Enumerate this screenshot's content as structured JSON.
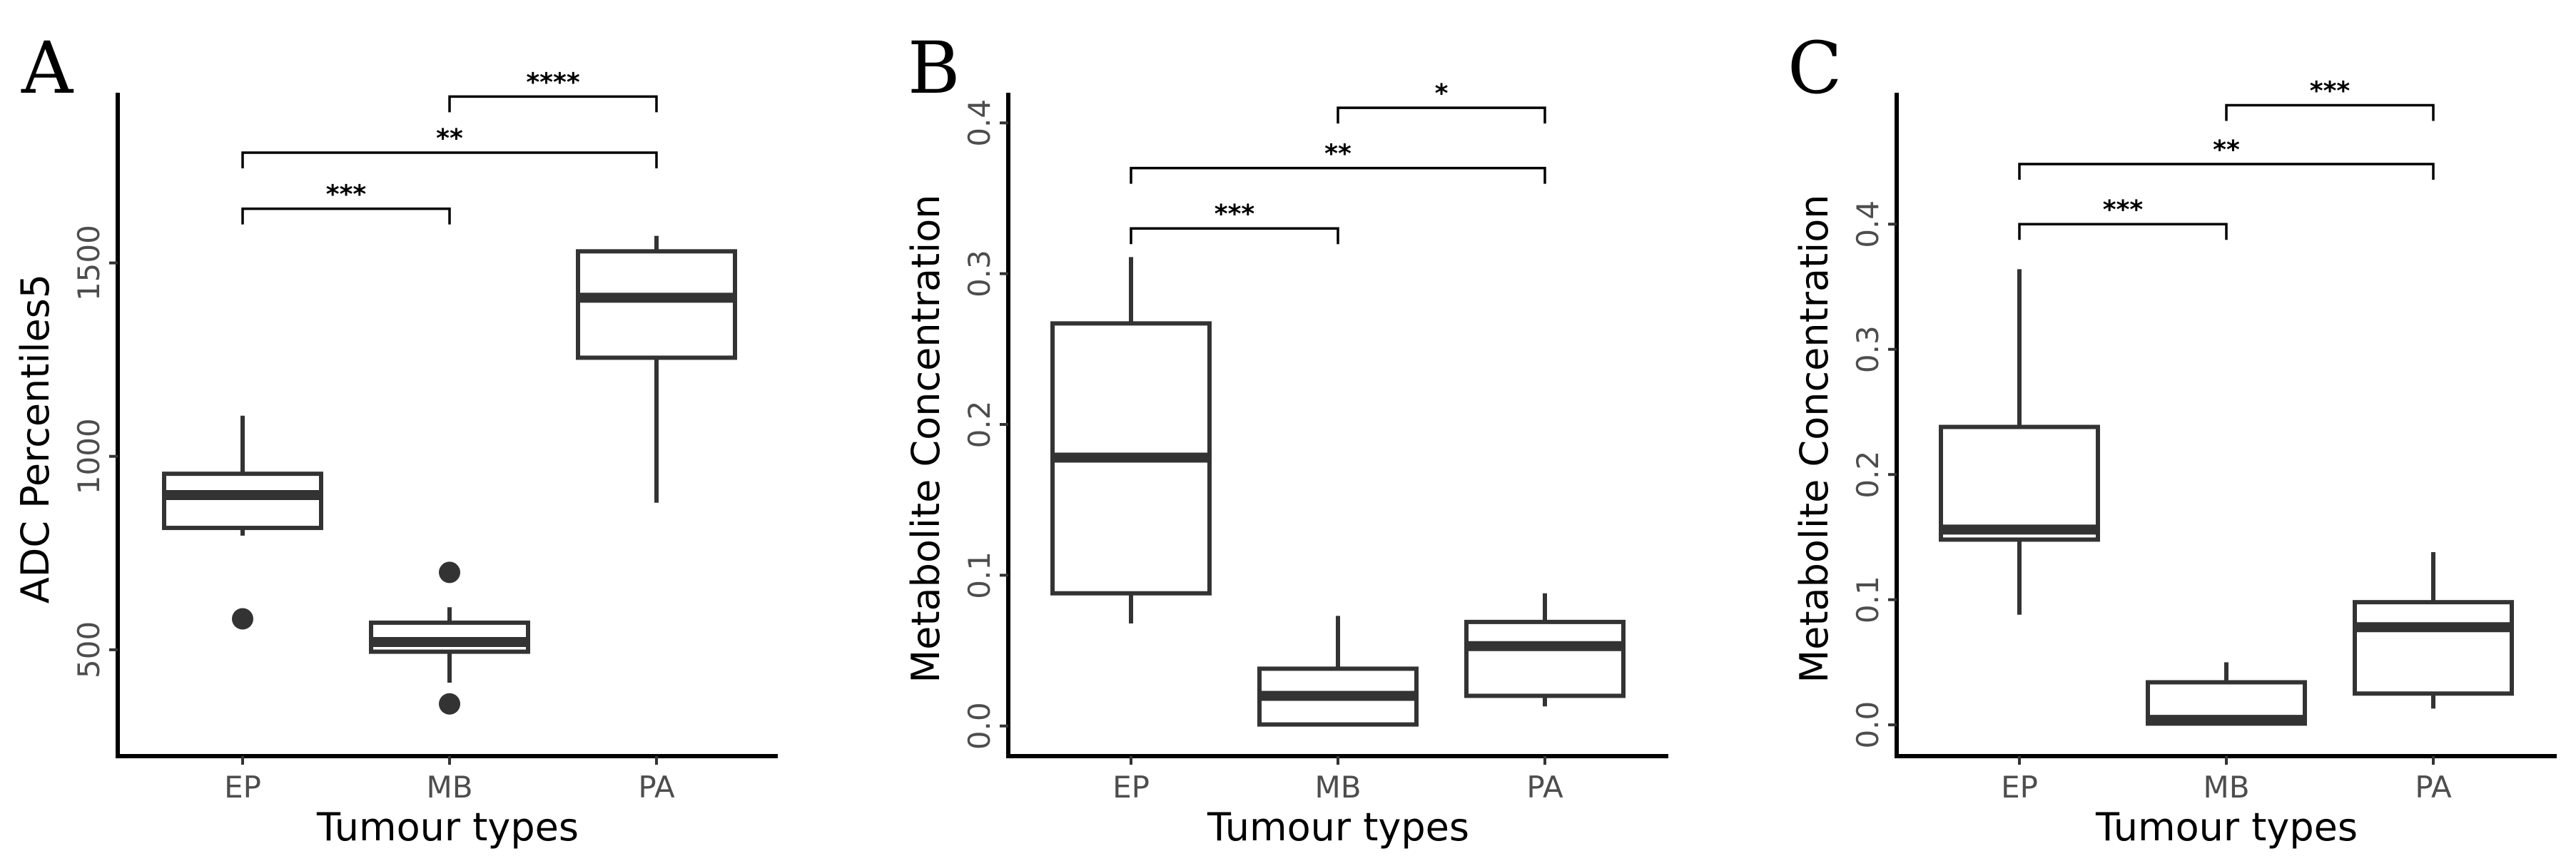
{
  "chart_data": [
    {
      "type": "box",
      "panel_label": "A",
      "xlabel": "Tumour types",
      "ylabel": "ADC Percentiles5",
      "ylim": [
        225,
        1940
      ],
      "yticks": [
        500,
        1000,
        1500
      ],
      "categories": [
        "EP",
        "MB",
        "PA"
      ],
      "boxes": [
        {
          "category": "EP",
          "whisker_low": 795,
          "q1": 815,
          "median": 900,
          "q3": 955,
          "whisker_high": 1105,
          "outliers": [
            580
          ]
        },
        {
          "category": "MB",
          "whisker_low": 415,
          "q1": 495,
          "median": 520,
          "q3": 570,
          "whisker_high": 610,
          "outliers": [
            700,
            360
          ]
        },
        {
          "category": "PA",
          "whisker_low": 880,
          "q1": 1255,
          "median": 1410,
          "q3": 1530,
          "whisker_high": 1570,
          "outliers": []
        }
      ],
      "significance": [
        {
          "from": "EP",
          "to": "MB",
          "label": "***",
          "y": 1640
        },
        {
          "from": "EP",
          "to": "PA",
          "label": "**",
          "y": 1785
        },
        {
          "from": "MB",
          "to": "PA",
          "label": "****",
          "y": 1930
        }
      ]
    },
    {
      "type": "box",
      "panel_label": "B",
      "xlabel": "Tumour types",
      "ylabel": "Metabolite Concentration",
      "ylim": [
        -0.02,
        0.42
      ],
      "yticks": [
        0.0,
        0.1,
        0.2,
        0.3,
        0.4
      ],
      "tick_labels": [
        "0.0",
        "0.1",
        "0.2",
        "0.3",
        "0.4"
      ],
      "categories": [
        "EP",
        "MB",
        "PA"
      ],
      "boxes": [
        {
          "category": "EP",
          "whisker_low": 0.068,
          "q1": 0.088,
          "median": 0.178,
          "q3": 0.267,
          "whisker_high": 0.311,
          "outliers": []
        },
        {
          "category": "MB",
          "whisker_low": 0.001,
          "q1": 0.001,
          "median": 0.02,
          "q3": 0.038,
          "whisker_high": 0.073,
          "outliers": []
        },
        {
          "category": "PA",
          "whisker_low": 0.013,
          "q1": 0.02,
          "median": 0.053,
          "q3": 0.069,
          "whisker_high": 0.088,
          "outliers": []
        }
      ],
      "significance": [
        {
          "from": "EP",
          "to": "MB",
          "label": "***",
          "y": 0.33
        },
        {
          "from": "EP",
          "to": "PA",
          "label": "**",
          "y": 0.37
        },
        {
          "from": "MB",
          "to": "PA",
          "label": "*",
          "y": 0.41
        }
      ]
    },
    {
      "type": "box",
      "panel_label": "C",
      "xlabel": "Tumour types",
      "ylabel": "Metabolite Concentration",
      "ylim": [
        -0.025,
        0.505
      ],
      "yticks": [
        0.0,
        0.1,
        0.2,
        0.3,
        0.4
      ],
      "tick_labels": [
        "0.0",
        "0.1",
        "0.2",
        "0.3",
        "0.4"
      ],
      "categories": [
        "EP",
        "MB",
        "PA"
      ],
      "boxes": [
        {
          "category": "EP",
          "whisker_low": 0.088,
          "q1": 0.148,
          "median": 0.156,
          "q3": 0.238,
          "whisker_high": 0.364,
          "outliers": []
        },
        {
          "category": "MB",
          "whisker_low": 0.0,
          "q1": 0.001,
          "median": 0.004,
          "q3": 0.034,
          "whisker_high": 0.05,
          "outliers": []
        },
        {
          "category": "PA",
          "whisker_low": 0.013,
          "q1": 0.025,
          "median": 0.078,
          "q3": 0.098,
          "whisker_high": 0.138,
          "outliers": []
        }
      ],
      "significance": [
        {
          "from": "EP",
          "to": "MB",
          "label": "***",
          "y": 0.4
        },
        {
          "from": "EP",
          "to": "PA",
          "label": "**",
          "y": 0.448
        },
        {
          "from": "MB",
          "to": "PA",
          "label": "***",
          "y": 0.495
        }
      ]
    }
  ]
}
